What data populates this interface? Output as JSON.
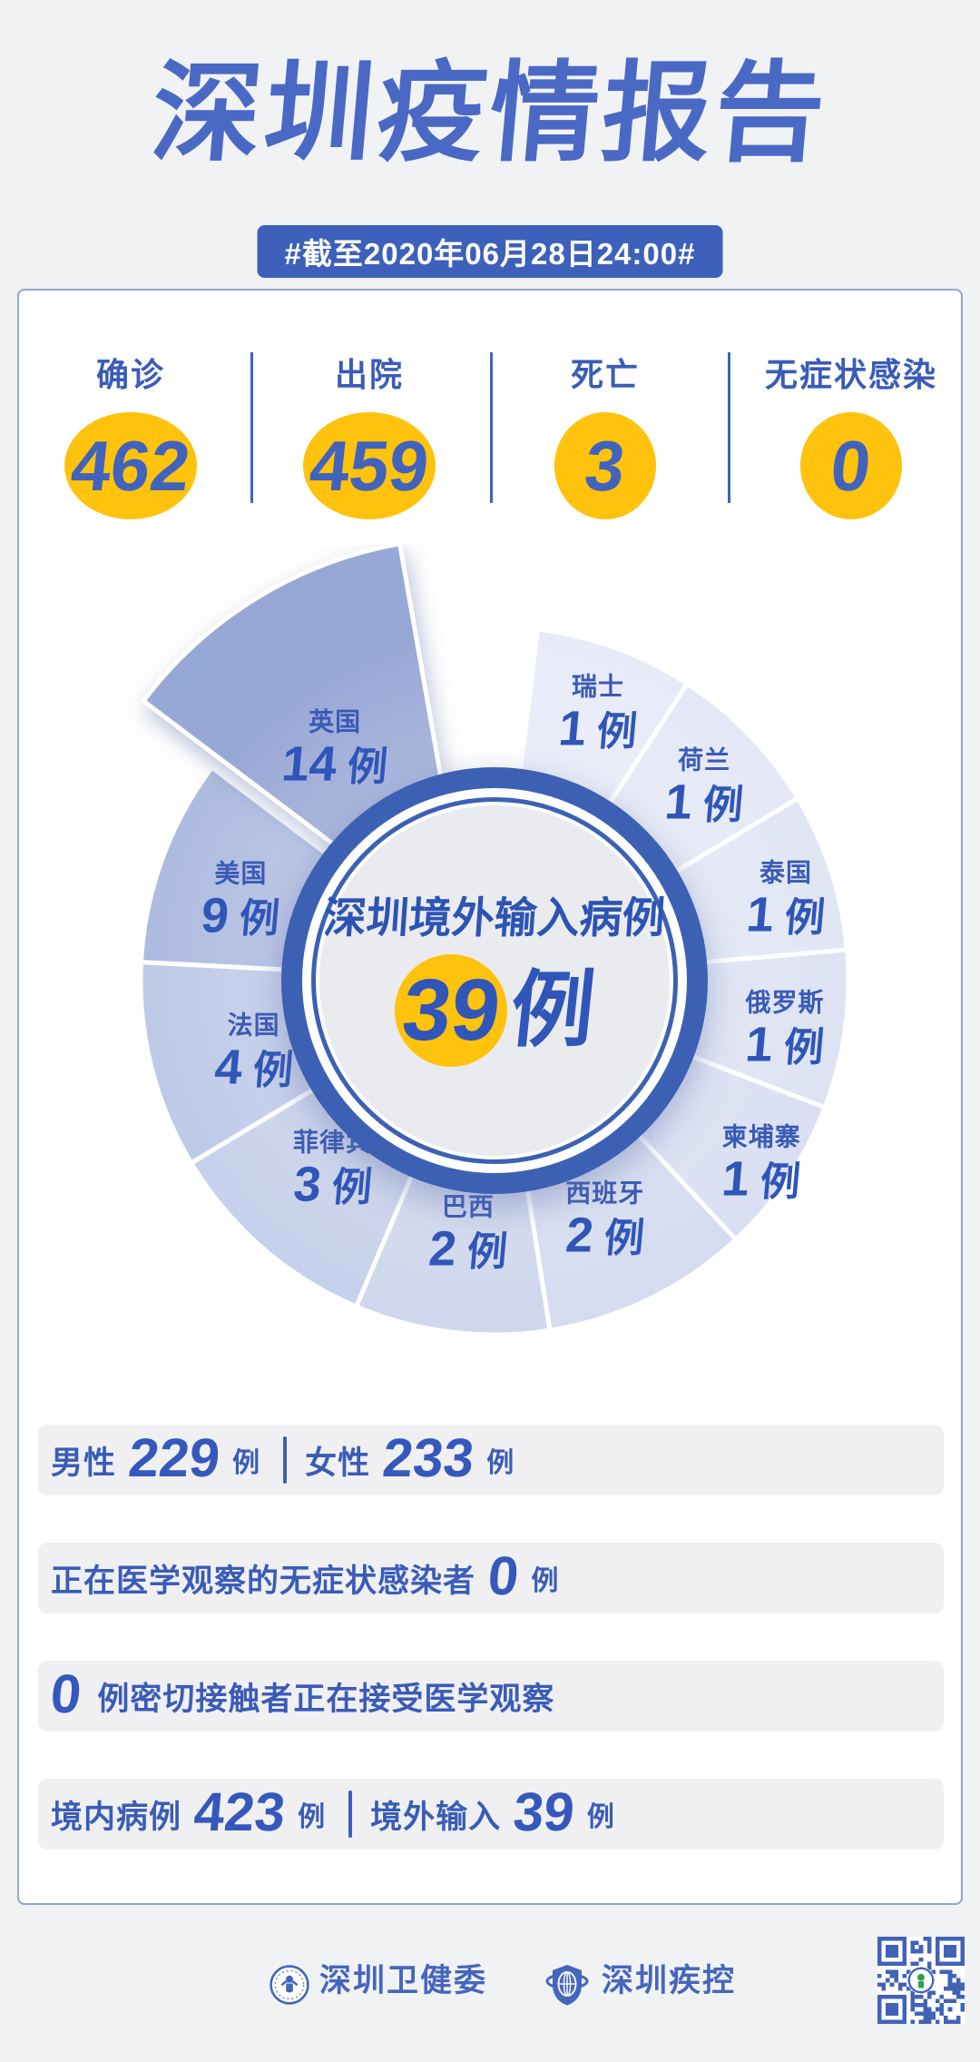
{
  "report": {
    "title": "深圳疫情报告",
    "date_badge": "#截至2020年06月28日24:00#"
  },
  "summary_stats": [
    {
      "label": "确诊",
      "value": "462"
    },
    {
      "label": "出院",
      "value": "459"
    },
    {
      "label": "死亡",
      "value": "3"
    },
    {
      "label": "无症状感染",
      "value": "0"
    }
  ],
  "chart_data": {
    "type": "pie",
    "title": "深圳境外输入病例",
    "total": {
      "value": "39",
      "unit": "例"
    },
    "unit": "例",
    "order": "clockwise-from-top",
    "legend_position": "labels-on-slices",
    "exploded_slice": "英国",
    "series": [
      {
        "name": "瑞士",
        "value": 1,
        "color": "#E7EBF8"
      },
      {
        "name": "荷兰",
        "value": 1,
        "color": "#E4E8F6"
      },
      {
        "name": "泰国",
        "value": 1,
        "color": "#E1E6F5"
      },
      {
        "name": "俄罗斯",
        "value": 1,
        "color": "#DEE3F3"
      },
      {
        "name": "柬埔寨",
        "value": 1,
        "color": "#DAE0F2"
      },
      {
        "name": "西班牙",
        "value": 2,
        "color": "#D5DCF0"
      },
      {
        "name": "巴西",
        "value": 2,
        "color": "#CFD7ED"
      },
      {
        "name": "菲律宾",
        "value": 3,
        "color": "#C8D1EB"
      },
      {
        "name": "法国",
        "value": 4,
        "color": "#BFCAE7"
      },
      {
        "name": "美国",
        "value": 9,
        "color": "#AEBBE0"
      },
      {
        "name": "英国",
        "value": 14,
        "color": "#98A8D6"
      }
    ]
  },
  "detail_rows": {
    "gender": {
      "male_label": "男性",
      "male_value": "229",
      "female_label": "女性",
      "female_value": "233",
      "unit": "例"
    },
    "asymptomatic": {
      "label": "正在医学观察的无症状感染者",
      "value": "0",
      "unit": "例"
    },
    "close_contacts": {
      "value": "0",
      "label": "例密切接触者正在接受医学观察"
    },
    "origin": {
      "domestic_label": "境内病例",
      "domestic_value": "423",
      "imported_label": "境外输入",
      "imported_value": "39",
      "unit": "例"
    }
  },
  "footer": {
    "org_health": "深圳卫健委",
    "org_cdc": "深圳疾控"
  },
  "colors": {
    "brand": "#4A69C4",
    "accent_yellow": "#FFC20D",
    "text_blue": "#3A5CB8",
    "badge_bg": "#3D60BA",
    "medallion_blue": "#3C61B4",
    "card_border": "#93A2D2",
    "page_bg": "#F1F2F4",
    "bar_bg": "#F0F0F2",
    "medallion_inner": "#EAEBEF",
    "qr_blue": "#4063B8"
  }
}
